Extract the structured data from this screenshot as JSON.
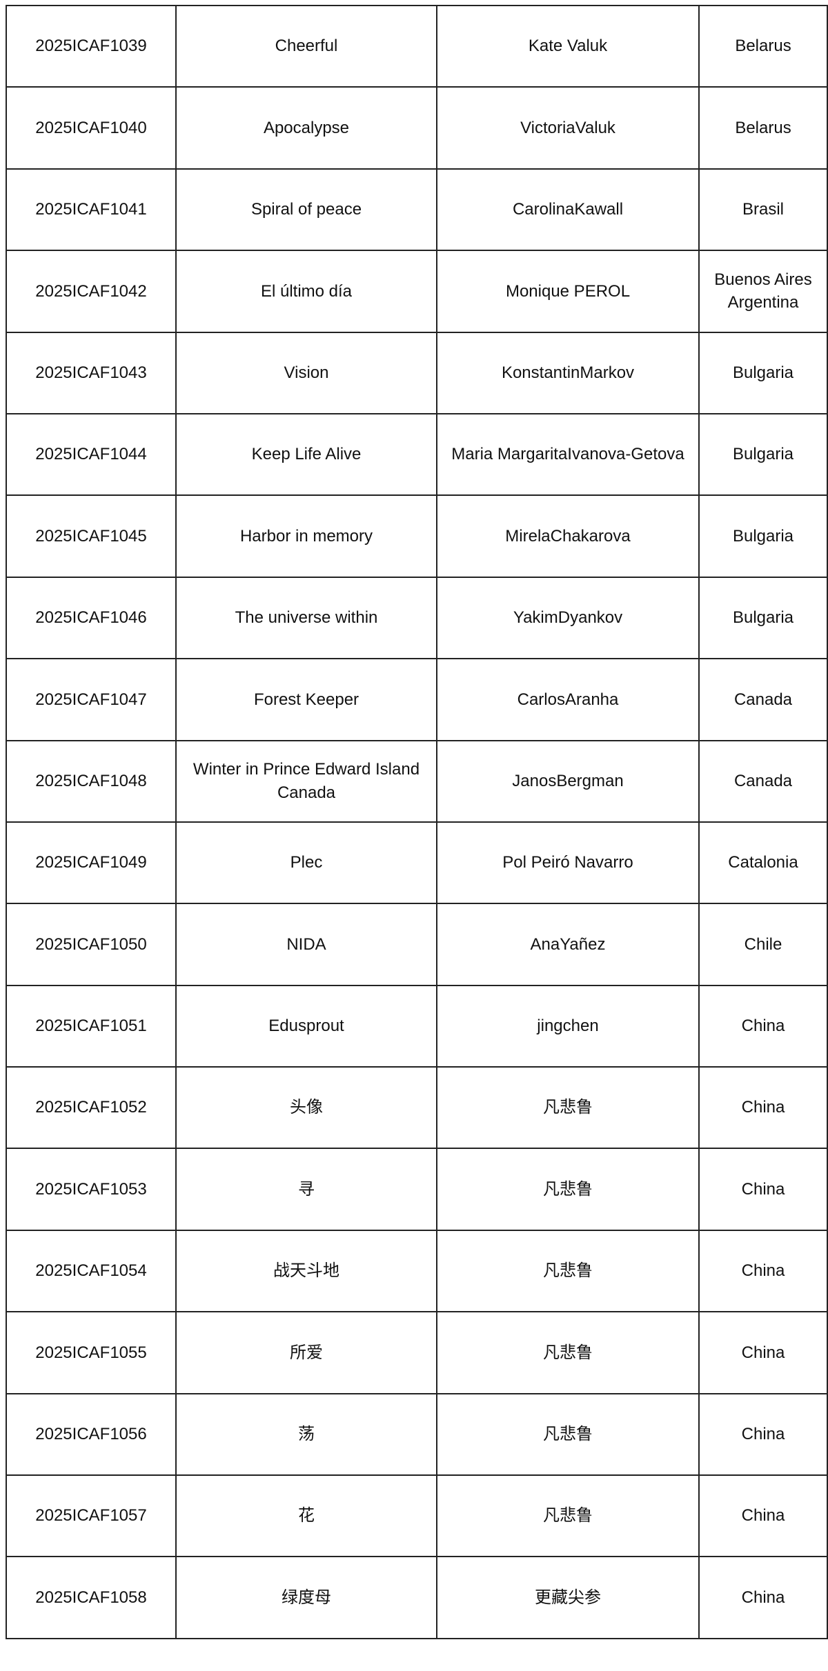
{
  "rows": [
    {
      "id": "2025ICAF1039",
      "title": "Cheerful",
      "author": "Kate Valuk",
      "country": "Belarus"
    },
    {
      "id": "2025ICAF1040",
      "title": "Apocalypse",
      "author": "VictoriaValuk",
      "country": "Belarus"
    },
    {
      "id": "2025ICAF1041",
      "title": "Spiral of peace",
      "author": "CarolinaKawall",
      "country": "Brasil"
    },
    {
      "id": "2025ICAF1042",
      "title": "El último día",
      "author": "Monique PEROL",
      "country": "Buenos Aires Argentina"
    },
    {
      "id": "2025ICAF1043",
      "title": "Vision",
      "author": "KonstantinMarkov",
      "country": "Bulgaria"
    },
    {
      "id": "2025ICAF1044",
      "title": "Keep Life Alive",
      "author": "Maria MargaritaIvanova-Getova",
      "country": "Bulgaria"
    },
    {
      "id": "2025ICAF1045",
      "title": "Harbor in memory",
      "author": "MirelaChakarova",
      "country": "Bulgaria"
    },
    {
      "id": "2025ICAF1046",
      "title": "The universe within",
      "author": "YakimDyankov",
      "country": "Bulgaria"
    },
    {
      "id": "2025ICAF1047",
      "title": "Forest Keeper",
      "author": "CarlosAranha",
      "country": "Canada"
    },
    {
      "id": "2025ICAF1048",
      "title": "Winter in Prince Edward Island Canada",
      "author": "JanosBergman",
      "country": "Canada"
    },
    {
      "id": "2025ICAF1049",
      "title": "Plec",
      "author": "Pol Peiró Navarro",
      "country": "Catalonia"
    },
    {
      "id": "2025ICAF1050",
      "title": "NIDA",
      "author": "AnaYañez",
      "country": "Chile"
    },
    {
      "id": "2025ICAF1051",
      "title": "Edusprout",
      "author": "jingchen",
      "country": "China"
    },
    {
      "id": "2025ICAF1052",
      "title": "头像",
      "author": "凡悲鲁",
      "country": "China"
    },
    {
      "id": "2025ICAF1053",
      "title": "寻",
      "author": "凡悲鲁",
      "country": "China"
    },
    {
      "id": "2025ICAF1054",
      "title": "战天斗地",
      "author": "凡悲鲁",
      "country": "China"
    },
    {
      "id": "2025ICAF1055",
      "title": "所爱",
      "author": "凡悲鲁",
      "country": "China"
    },
    {
      "id": "2025ICAF1056",
      "title": "荡",
      "author": "凡悲鲁",
      "country": "China"
    },
    {
      "id": "2025ICAF1057",
      "title": "花",
      "author": "凡悲鲁",
      "country": "China"
    },
    {
      "id": "2025ICAF1058",
      "title": "绿度母",
      "author": "更藏尖参",
      "country": "China"
    }
  ]
}
